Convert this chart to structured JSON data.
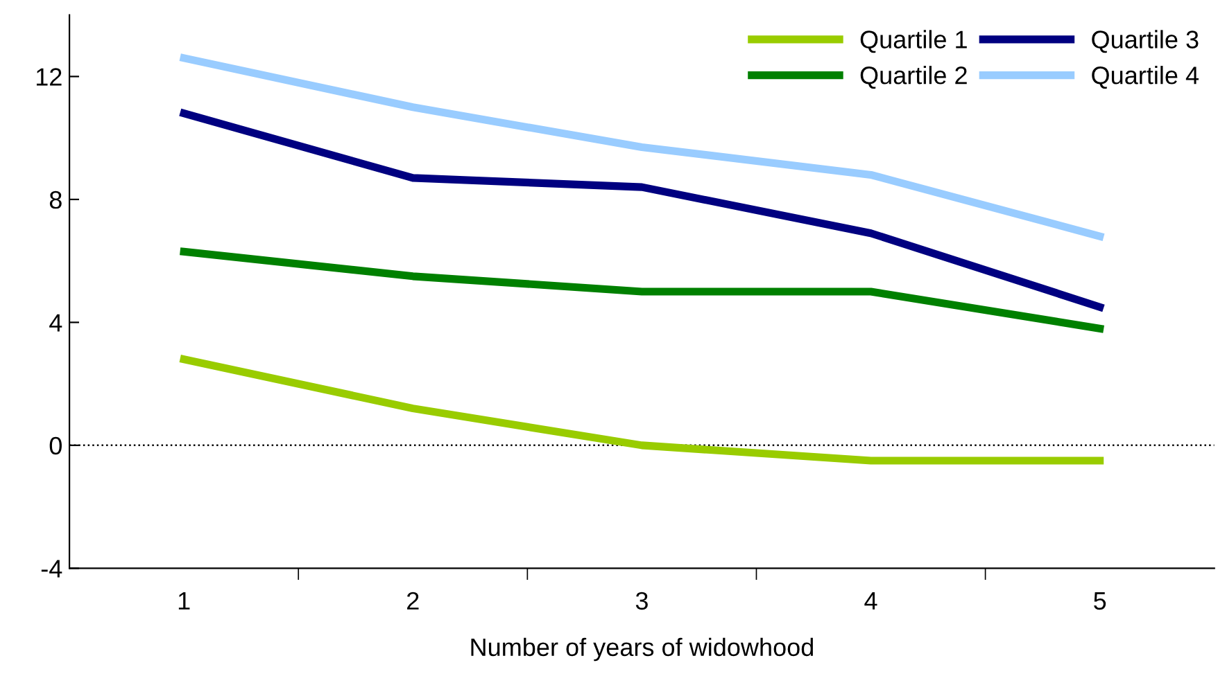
{
  "chart_data": {
    "type": "line",
    "xlabel": "Number of years of widowhood",
    "categories": [
      "1",
      "2",
      "3",
      "4",
      "5"
    ],
    "series": [
      {
        "name": "Quartile 1",
        "color": "#99cc00",
        "values": [
          2.8,
          1.2,
          0.0,
          -0.5,
          -0.5
        ]
      },
      {
        "name": "Quartile 2",
        "color": "#008000",
        "values": [
          6.3,
          5.5,
          5.0,
          5.0,
          3.8
        ]
      },
      {
        "name": "Quartile 3",
        "color": "#000080",
        "values": [
          10.8,
          8.7,
          8.4,
          6.9,
          4.5
        ]
      },
      {
        "name": "Quartile 4",
        "color": "#99ccff",
        "values": [
          12.6,
          11.0,
          9.7,
          8.8,
          6.8
        ]
      }
    ],
    "ylim": [
      -4,
      14
    ],
    "yticks": [
      -4,
      0,
      4,
      8,
      12
    ],
    "ref_lines": [
      {
        "axis": "y",
        "value": 0,
        "color": "#000000",
        "line_style": "dotted"
      }
    ],
    "grid": false,
    "legend": "top right",
    "marker": "none",
    "line_style": "solid"
  }
}
